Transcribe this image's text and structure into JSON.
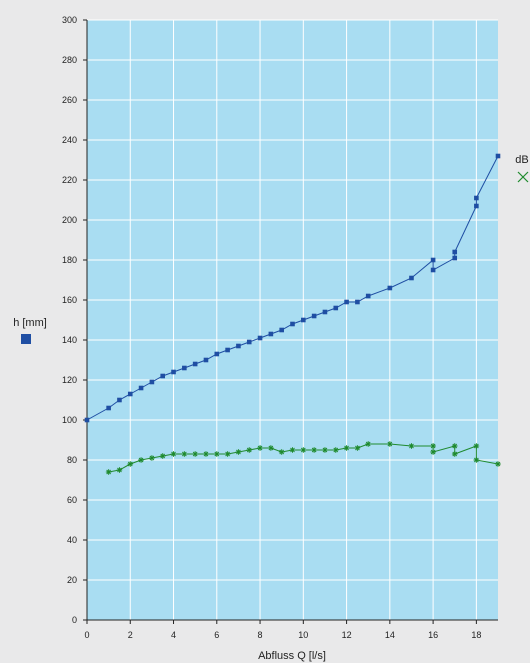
{
  "chart_data": {
    "type": "line",
    "title": "",
    "xlabel": "Abfluss Q [l/s]",
    "xlim": [
      0,
      19
    ],
    "ylim": [
      0,
      300
    ],
    "x_ticks": [
      0,
      2,
      4,
      6,
      8,
      10,
      12,
      14,
      16,
      18
    ],
    "y_ticks": [
      0,
      20,
      40,
      60,
      80,
      100,
      120,
      140,
      160,
      180,
      200,
      220,
      240,
      260,
      280,
      300
    ],
    "grid": true,
    "plot_background": "#a9ddf2",
    "grid_color": "#ffffff",
    "legend": [
      {
        "label": "h [mm]",
        "marker": "square",
        "color": "#1f4ea3",
        "placement": "left"
      },
      {
        "label": "dB",
        "marker": "x",
        "color": "#1f8a2e",
        "placement": "right"
      }
    ],
    "series": [
      {
        "name": "h [mm]",
        "color": "#1f4ea3",
        "marker": "square",
        "points": [
          [
            0,
            100
          ],
          [
            1,
            106
          ],
          [
            1.5,
            110
          ],
          [
            2,
            113
          ],
          [
            2.5,
            116
          ],
          [
            3,
            119
          ],
          [
            3.5,
            122
          ],
          [
            4,
            124
          ],
          [
            4.5,
            126
          ],
          [
            5,
            128
          ],
          [
            5.5,
            130
          ],
          [
            6,
            133
          ],
          [
            6.5,
            135
          ],
          [
            7,
            137
          ],
          [
            7.5,
            139
          ],
          [
            8,
            141
          ],
          [
            8.5,
            143
          ],
          [
            9,
            145
          ],
          [
            9.5,
            148
          ],
          [
            10,
            150
          ],
          [
            10.5,
            152
          ],
          [
            11,
            154
          ],
          [
            11.5,
            156
          ],
          [
            12,
            159
          ],
          [
            12.5,
            159
          ],
          [
            13,
            162
          ],
          [
            14,
            166
          ],
          [
            15,
            171
          ],
          [
            16,
            180
          ],
          [
            16,
            175
          ],
          [
            17,
            181
          ],
          [
            17,
            184
          ],
          [
            18,
            207
          ],
          [
            18,
            211
          ],
          [
            19,
            232
          ]
        ]
      },
      {
        "name": "dB",
        "color": "#1f8a2e",
        "marker": "asterisk",
        "points": [
          [
            1,
            74
          ],
          [
            1.5,
            75
          ],
          [
            2,
            78
          ],
          [
            2.5,
            80
          ],
          [
            3,
            81
          ],
          [
            3.5,
            82
          ],
          [
            4,
            83
          ],
          [
            4.5,
            83
          ],
          [
            5,
            83
          ],
          [
            5.5,
            83
          ],
          [
            6,
            83
          ],
          [
            6.5,
            83
          ],
          [
            7,
            84
          ],
          [
            7.5,
            85
          ],
          [
            8,
            86
          ],
          [
            8.5,
            86
          ],
          [
            9,
            84
          ],
          [
            9.5,
            85
          ],
          [
            10,
            85
          ],
          [
            10.5,
            85
          ],
          [
            11,
            85
          ],
          [
            11.5,
            85
          ],
          [
            12,
            86
          ],
          [
            12.5,
            86
          ],
          [
            13,
            88
          ],
          [
            14,
            88
          ],
          [
            15,
            87
          ],
          [
            16,
            87
          ],
          [
            16,
            84
          ],
          [
            17,
            87
          ],
          [
            17,
            83
          ],
          [
            18,
            87
          ],
          [
            18,
            80
          ],
          [
            19,
            78
          ]
        ]
      }
    ]
  }
}
